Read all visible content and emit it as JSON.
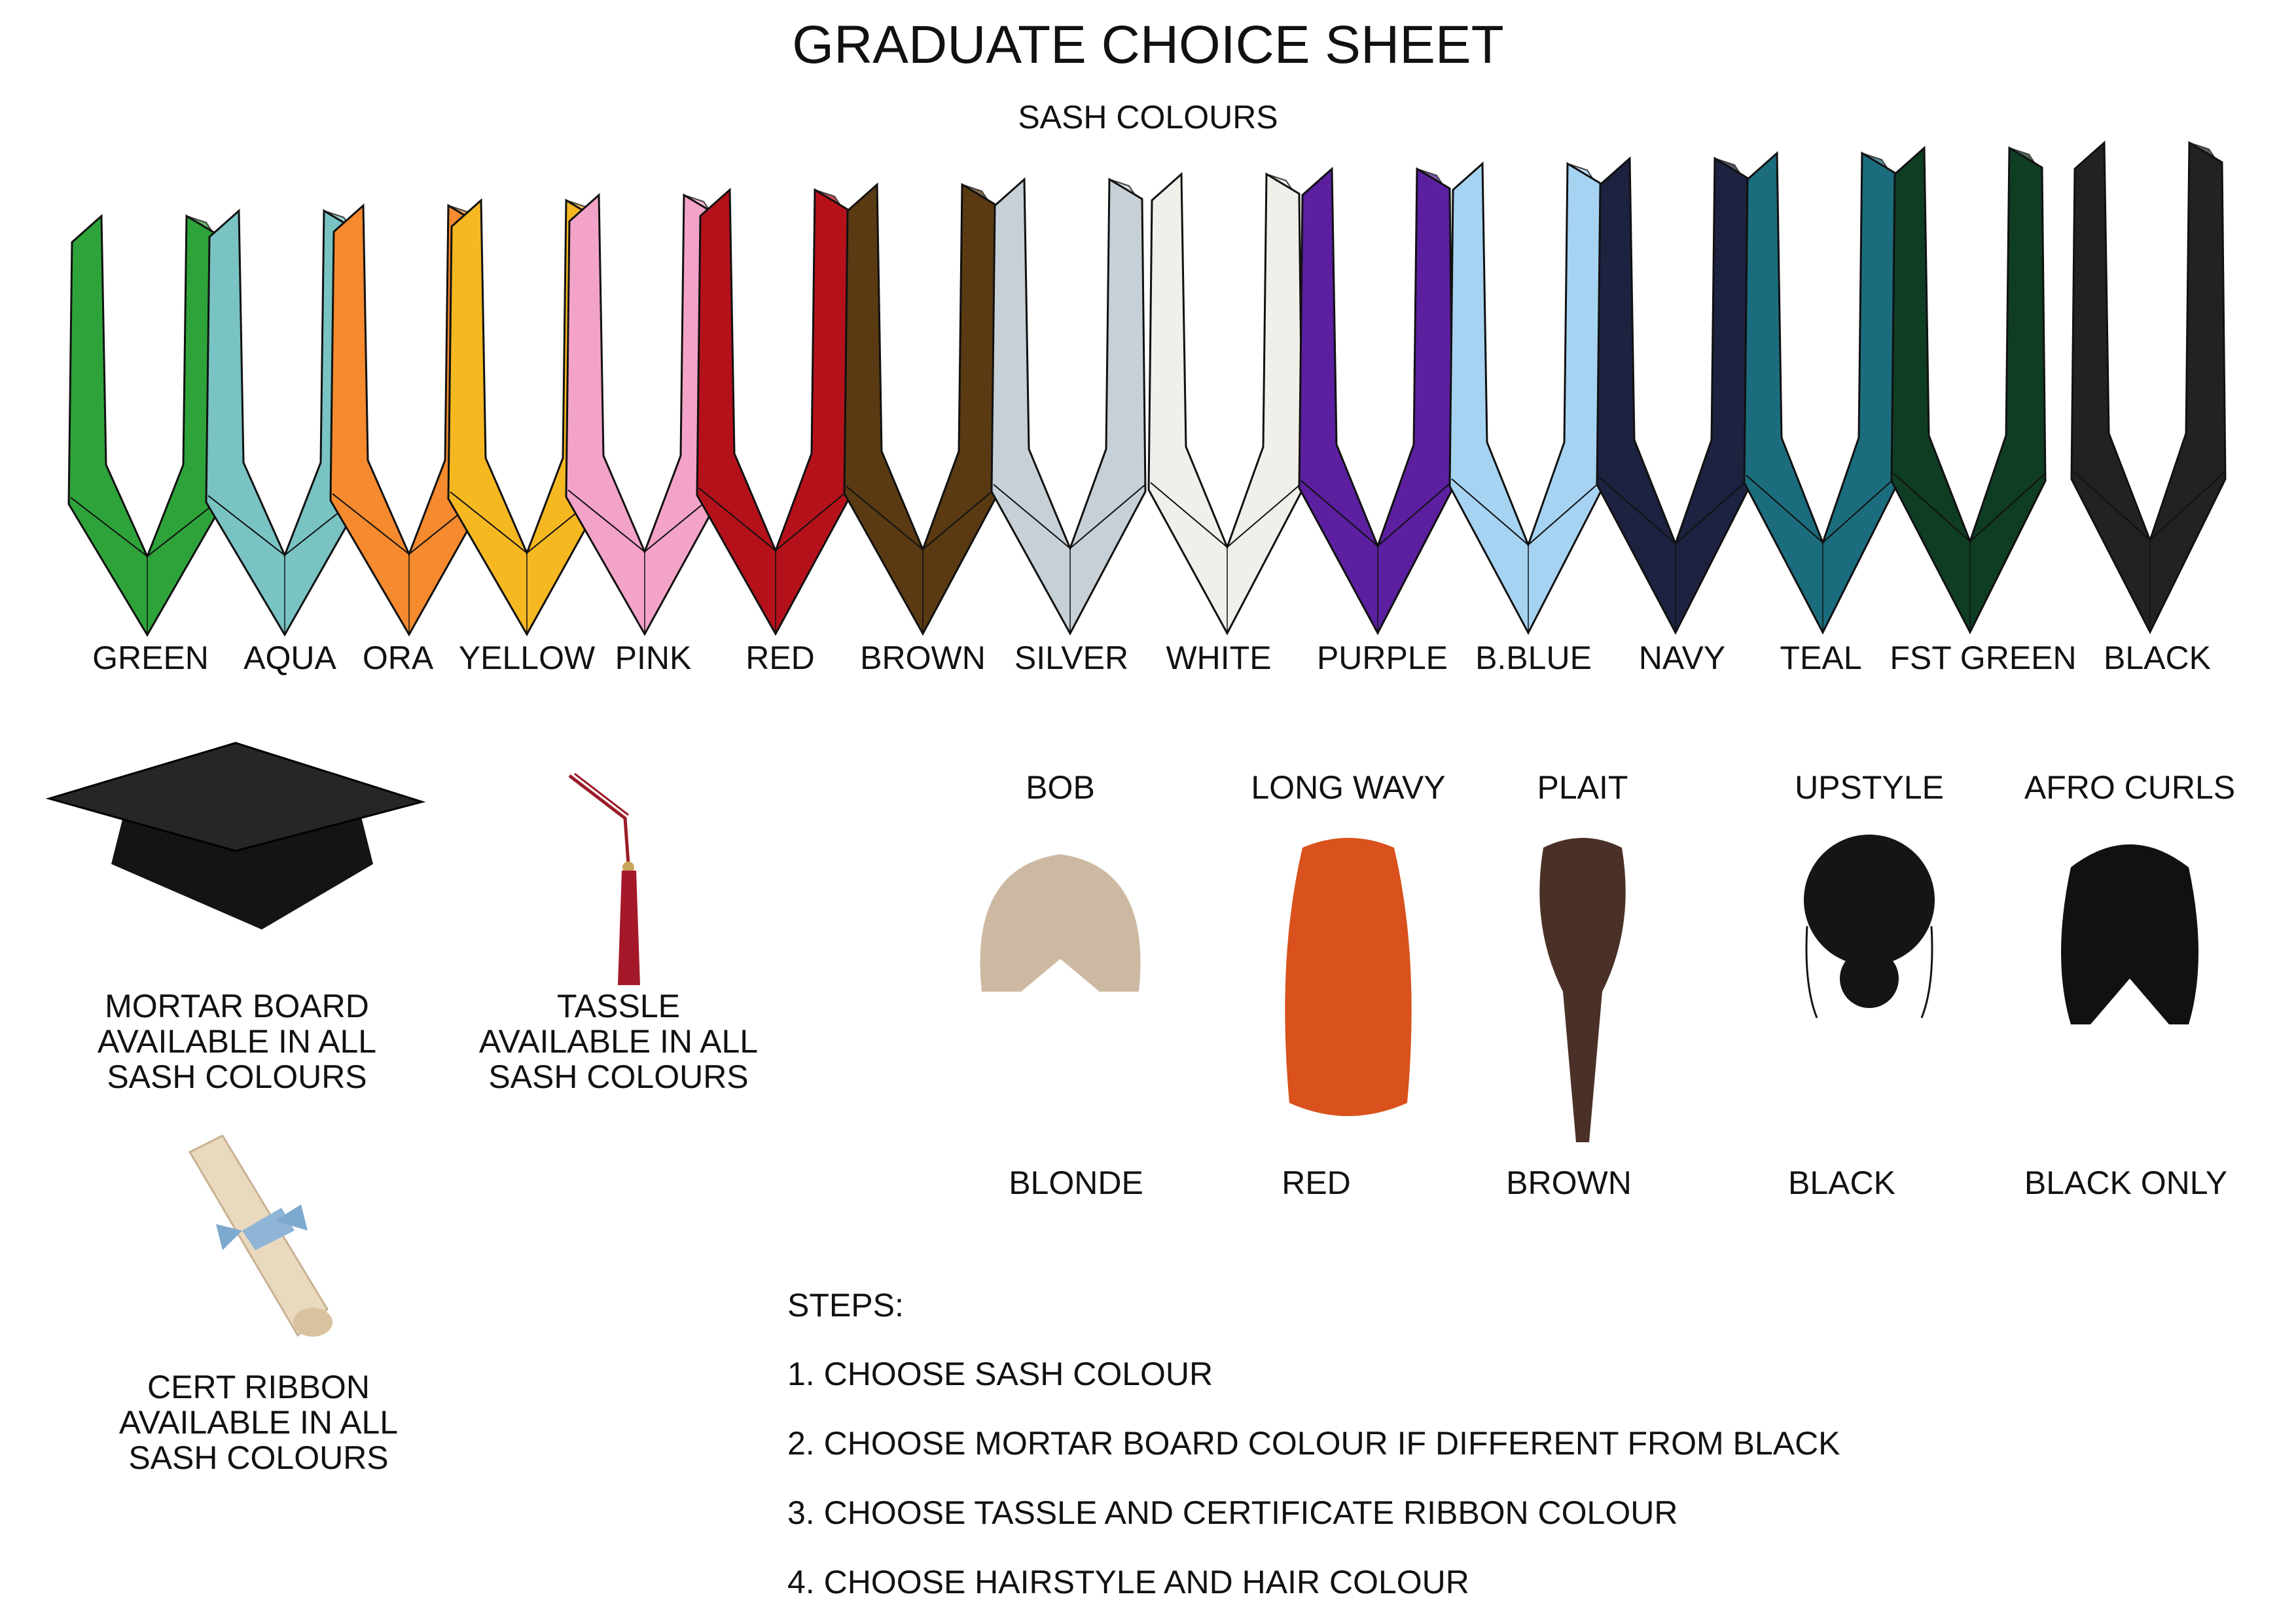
{
  "title": "GRADUATE CHOICE SHEET",
  "sash_heading": "SASH COLOURS",
  "sashes": [
    {
      "label": "GREEN",
      "color": "#2ea33a"
    },
    {
      "label": "AQUA",
      "color": "#79c3c3"
    },
    {
      "label": "ORA",
      "color": "#f58a2e"
    },
    {
      "label": "YELLOW",
      "color": "#f5b821"
    },
    {
      "label": "PINK",
      "color": "#f4a3c8"
    },
    {
      "label": "RED",
      "color": "#b5111b"
    },
    {
      "label": "BROWN",
      "color": "#5a3a12"
    },
    {
      "label": "SILVER",
      "color": "#c6d0d6"
    },
    {
      "label": "WHITE",
      "color": "#f1efe9"
    },
    {
      "label": "PURPLE",
      "color": "#5b1fa0"
    },
    {
      "label": "B.BLUE",
      "color": "#a6d3f2"
    },
    {
      "label": "NAVY",
      "color": "#1c2240"
    },
    {
      "label": "TEAL",
      "color": "#1b6d7d"
    },
    {
      "label": "FST GREEN",
      "color": "#0f3d24"
    },
    {
      "label": "BLACK",
      "color": "#222222"
    }
  ],
  "accessories": {
    "mortar": [
      "MORTAR BOARD",
      "AVAILABLE IN ALL",
      "SASH COLOURS"
    ],
    "tassle": [
      "TASSLE",
      "AVAILABLE IN ALL",
      "SASH COLOURS"
    ],
    "cert": [
      "CERT RIBBON",
      "AVAILABLE IN ALL",
      "SASH COLOURS"
    ]
  },
  "hairstyles": [
    {
      "style": "BOB",
      "colour": "BLONDE",
      "hex": "#cdb9a2"
    },
    {
      "style": "LONG WAVY",
      "colour": "RED",
      "hex": "#d9511c"
    },
    {
      "style": "PLAIT",
      "colour": "BROWN",
      "hex": "#4a3026"
    },
    {
      "style": "UPSTYLE",
      "colour": "BLACK",
      "hex": "#151515"
    },
    {
      "style": "AFRO CURLS",
      "colour": "BLACK ONLY",
      "hex": "#111111"
    }
  ],
  "steps": {
    "heading": "STEPS:",
    "items": [
      "1. CHOOSE SASH COLOUR",
      "2. CHOOSE MORTAR BOARD COLOUR IF DIFFERENT FROM BLACK",
      "3. CHOOSE TASSLE AND CERTIFICATE RIBBON COLOUR",
      "4. CHOOSE HAIRSTYLE AND HAIR COLOUR"
    ]
  }
}
